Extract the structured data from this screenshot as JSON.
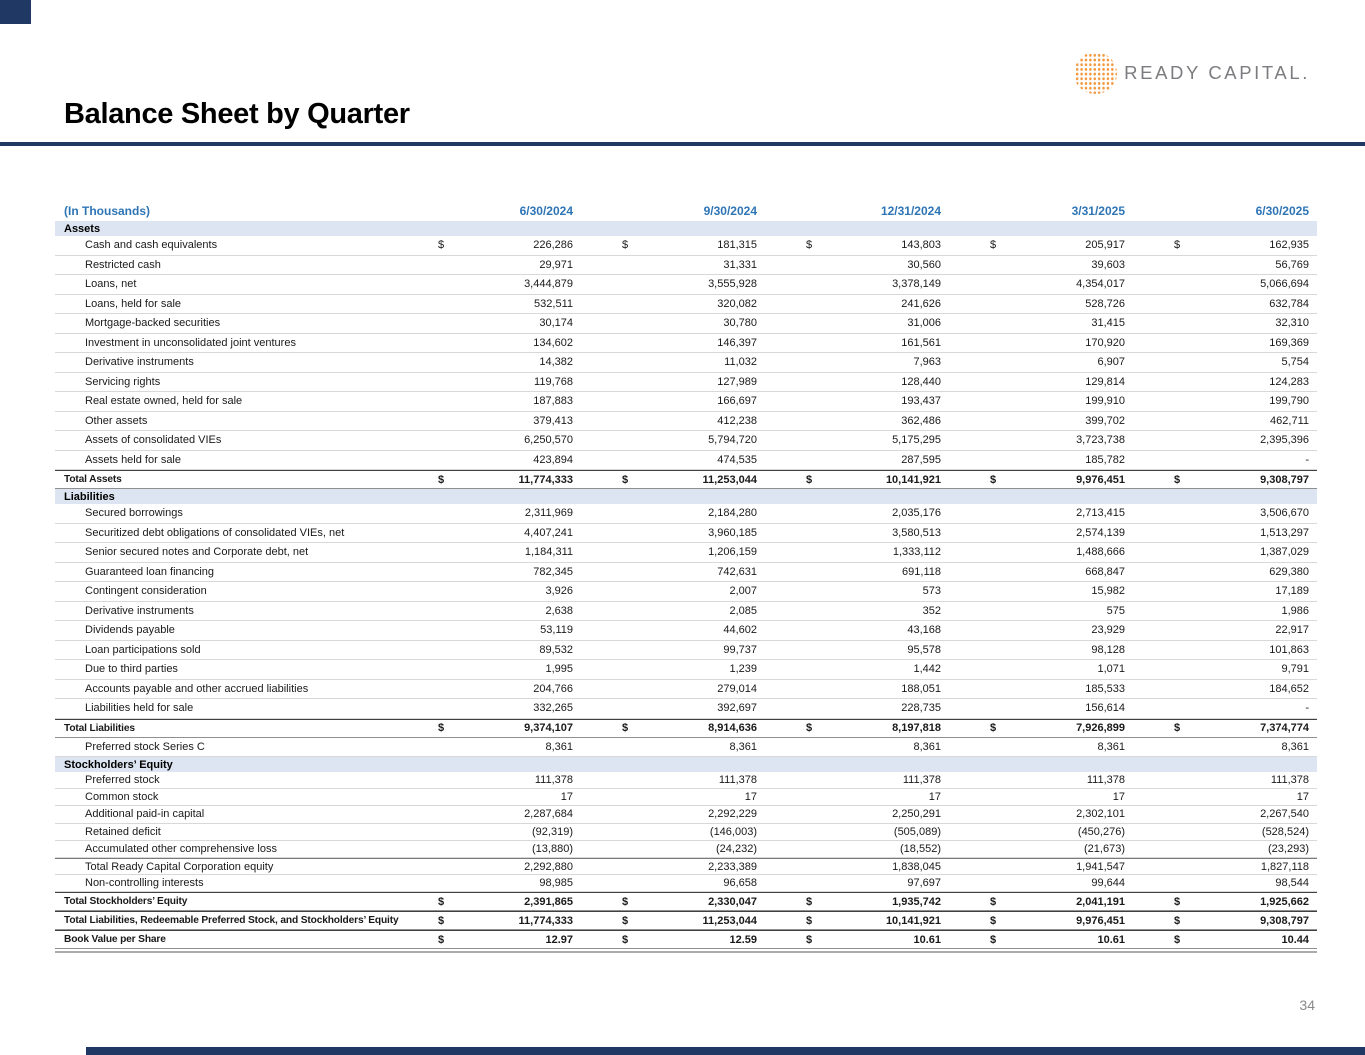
{
  "slide": {
    "title": "Balance Sheet by Quarter",
    "logo_text": "READY CAPITAL.",
    "page_number": "34",
    "accent_navy": "#1F3864",
    "header_blue": "#2E75B6",
    "section_bg": "#DCE5F1",
    "logo_orange": "#F2993F"
  },
  "table": {
    "unit_label": "(In Thousands)",
    "columns": [
      "6/30/2024",
      "9/30/2024",
      "12/31/2024",
      "3/31/2025",
      "6/30/2025"
    ],
    "sections": [
      {
        "name": "Assets",
        "rows": [
          {
            "label": "Cash and cash equivalents",
            "dollar": true,
            "style": "item",
            "values": [
              "226,286",
              "181,315",
              "143,803",
              "205,917",
              "162,935"
            ]
          },
          {
            "label": "Restricted cash",
            "style": "item",
            "values": [
              "29,971",
              "31,331",
              "30,560",
              "39,603",
              "56,769"
            ]
          },
          {
            "label": "Loans, net",
            "style": "item",
            "values": [
              "3,444,879",
              "3,555,928",
              "3,378,149",
              "4,354,017",
              "5,066,694"
            ]
          },
          {
            "label": "Loans, held for sale",
            "style": "item",
            "values": [
              "532,511",
              "320,082",
              "241,626",
              "528,726",
              "632,784"
            ]
          },
          {
            "label": "Mortgage-backed securities",
            "style": "item",
            "values": [
              "30,174",
              "30,780",
              "31,006",
              "31,415",
              "32,310"
            ]
          },
          {
            "label": "Investment in unconsolidated joint ventures",
            "style": "item",
            "values": [
              "134,602",
              "146,397",
              "161,561",
              "170,920",
              "169,369"
            ]
          },
          {
            "label": "Derivative instruments",
            "style": "item",
            "values": [
              "14,382",
              "11,032",
              "7,963",
              "6,907",
              "5,754"
            ]
          },
          {
            "label": "Servicing rights",
            "style": "item",
            "values": [
              "119,768",
              "127,989",
              "128,440",
              "129,814",
              "124,283"
            ]
          },
          {
            "label": "Real estate owned, held for sale",
            "style": "item",
            "values": [
              "187,883",
              "166,697",
              "193,437",
              "199,910",
              "199,790"
            ]
          },
          {
            "label": "Other assets",
            "style": "item",
            "values": [
              "379,413",
              "412,238",
              "362,486",
              "399,702",
              "462,711"
            ]
          },
          {
            "label": "Assets of consolidated VIEs",
            "style": "item",
            "values": [
              "6,250,570",
              "5,794,720",
              "5,175,295",
              "3,723,738",
              "2,395,396"
            ]
          },
          {
            "label": "Assets held for sale",
            "style": "item",
            "values": [
              "423,894",
              "474,535",
              "287,595",
              "185,782",
              "-"
            ]
          },
          {
            "label": "Total Assets",
            "dollar": true,
            "style": "grand",
            "values": [
              "11,774,333",
              "11,253,044",
              "10,141,921",
              "9,976,451",
              "9,308,797"
            ]
          }
        ]
      },
      {
        "name": "Liabilities",
        "rows": [
          {
            "label": "Secured borrowings",
            "style": "item",
            "values": [
              "2,311,969",
              "2,184,280",
              "2,035,176",
              "2,713,415",
              "3,506,670"
            ]
          },
          {
            "label": "Securitized debt obligations of consolidated VIEs, net",
            "style": "item",
            "values": [
              "4,407,241",
              "3,960,185",
              "3,580,513",
              "2,574,139",
              "1,513,297"
            ]
          },
          {
            "label": "Senior secured notes and Corporate debt, net",
            "style": "item",
            "values": [
              "1,184,311",
              "1,206,159",
              "1,333,112",
              "1,488,666",
              "1,387,029"
            ]
          },
          {
            "label": "Guaranteed loan financing",
            "style": "item",
            "values": [
              "782,345",
              "742,631",
              "691,118",
              "668,847",
              "629,380"
            ]
          },
          {
            "label": "Contingent consideration",
            "style": "item",
            "values": [
              "3,926",
              "2,007",
              "573",
              "15,982",
              "17,189"
            ]
          },
          {
            "label": "Derivative instruments",
            "style": "item",
            "values": [
              "2,638",
              "2,085",
              "352",
              "575",
              "1,986"
            ]
          },
          {
            "label": "Dividends payable",
            "style": "item",
            "values": [
              "53,119",
              "44,602",
              "43,168",
              "23,929",
              "22,917"
            ]
          },
          {
            "label": "Loan participations sold",
            "style": "item",
            "values": [
              "89,532",
              "99,737",
              "95,578",
              "98,128",
              "101,863"
            ]
          },
          {
            "label": "Due to third parties",
            "style": "item",
            "values": [
              "1,995",
              "1,239",
              "1,442",
              "1,071",
              "9,791"
            ]
          },
          {
            "label": "Accounts payable and other accrued liabilities",
            "style": "item",
            "values": [
              "204,766",
              "279,014",
              "188,051",
              "185,533",
              "184,652"
            ]
          },
          {
            "label": "Liabilities held for sale",
            "style": "item",
            "values": [
              "332,265",
              "392,697",
              "228,735",
              "156,614",
              "-"
            ]
          },
          {
            "label": "Total Liabilities",
            "dollar": true,
            "style": "grand",
            "values": [
              "9,374,107",
              "8,914,636",
              "8,197,818",
              "7,926,899",
              "7,374,774"
            ]
          },
          {
            "label": "Preferred stock Series C",
            "style": "item",
            "values": [
              "8,361",
              "8,361",
              "8,361",
              "8,361",
              "8,361"
            ]
          }
        ]
      },
      {
        "name": "Stockholders’ Equity",
        "rows": [
          {
            "label": "Preferred stock",
            "style": "item compact",
            "values": [
              "111,378",
              "111,378",
              "111,378",
              "111,378",
              "111,378"
            ]
          },
          {
            "label": "Common stock",
            "style": "item compact",
            "values": [
              "17",
              "17",
              "17",
              "17",
              "17"
            ]
          },
          {
            "label": "Additional paid-in capital",
            "style": "item compact",
            "values": [
              "2,287,684",
              "2,292,229",
              "2,250,291",
              "2,302,101",
              "2,267,540"
            ]
          },
          {
            "label": "Retained deficit",
            "style": "item compact",
            "values": [
              "(92,319)",
              "(146,003)",
              "(505,089)",
              "(450,276)",
              "(528,524)"
            ]
          },
          {
            "label": "Accumulated other comprehensive loss",
            "style": "item compact",
            "values": [
              "(13,880)",
              "(24,232)",
              "(18,552)",
              "(21,673)",
              "(23,293)"
            ]
          },
          {
            "label": "Total Ready Capital Corporation equity",
            "style": "item compact subtotal",
            "values": [
              "2,292,880",
              "2,233,389",
              "1,838,045",
              "1,941,547",
              "1,827,118"
            ]
          },
          {
            "label": "Non-controlling interests",
            "style": "item compact",
            "values": [
              "98,985",
              "96,658",
              "97,697",
              "99,644",
              "98,544"
            ]
          },
          {
            "label": "Total Stockholders’ Equity",
            "dollar": true,
            "style": "grand",
            "values": [
              "2,391,865",
              "2,330,047",
              "1,935,742",
              "2,041,191",
              "1,925,662"
            ]
          },
          {
            "label": "Total Liabilities, Redeemable Preferred Stock, and Stockholders’ Equity",
            "dollar": true,
            "style": "grand",
            "values": [
              "11,774,333",
              "11,253,044",
              "10,141,921",
              "9,976,451",
              "9,308,797"
            ]
          },
          {
            "label": "Book Value per Share",
            "dollar": true,
            "style": "grand",
            "values": [
              "12.97",
              "12.59",
              "10.61",
              "10.61",
              "10.44"
            ]
          }
        ]
      }
    ]
  }
}
